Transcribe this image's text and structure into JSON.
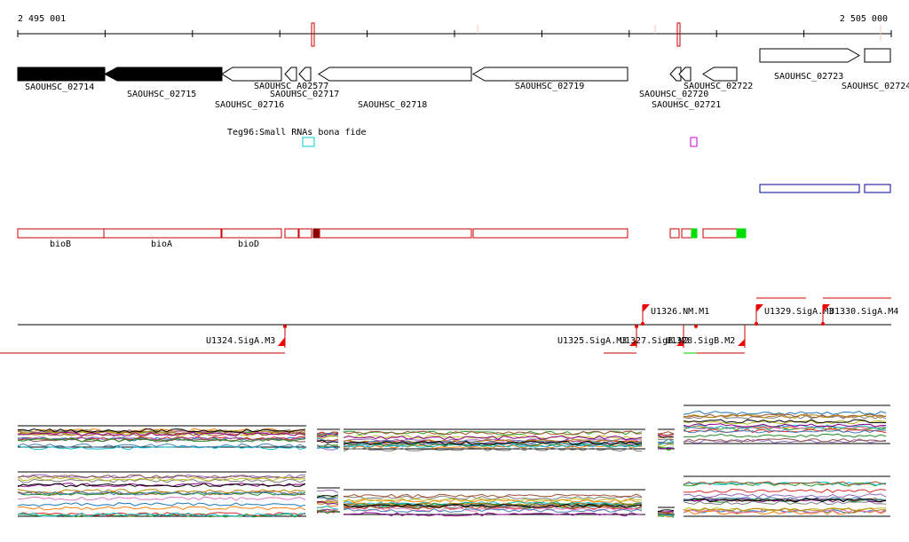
{
  "ruler": {
    "start_label": "2 495 001",
    "end_label": "2 505 000"
  },
  "genes": [
    {
      "name": "SAOUHSC_02714",
      "strand": "-",
      "fill": "black"
    },
    {
      "name": "SAOUHSC_02715",
      "strand": "-",
      "fill": "black"
    },
    {
      "name": "SAOUHSC_02716",
      "strand": "-",
      "fill": "white"
    },
    {
      "name": "SAOUHSC_A02577",
      "strand": "-",
      "fill": "white"
    },
    {
      "name": "SAOUHSC_02717",
      "strand": "-",
      "fill": "white"
    },
    {
      "name": "SAOUHSC_02718",
      "strand": "-",
      "fill": "white"
    },
    {
      "name": "SAOUHSC_02719",
      "strand": "-",
      "fill": "white"
    },
    {
      "name": "SAOUHSC_02720",
      "strand": "-",
      "fill": "white"
    },
    {
      "name": "SAOUHSC_02721",
      "strand": "-",
      "fill": "white"
    },
    {
      "name": "SAOUHSC_02722",
      "strand": "-",
      "fill": "white"
    },
    {
      "name": "SAOUHSC_02723",
      "strand": "+",
      "fill": "white"
    },
    {
      "name": "SAOUHSC_02724",
      "strand": "+",
      "fill": "white"
    }
  ],
  "srna": {
    "label": "Teg96:Small RNAs bona fide"
  },
  "operon_names": [
    "bioB",
    "bioA",
    "bioD"
  ],
  "promoters": [
    {
      "name": "U1324.SigA.M3"
    },
    {
      "name": "U1325.SigA.M3"
    },
    {
      "name": "U1326.NM.M1"
    },
    {
      "name": "U1327.SigB.M2"
    },
    {
      "name": "U1328.SigB.M2"
    },
    {
      "name": "U1329.SigA.M3"
    },
    {
      "name": "U1330.SigA.M4"
    }
  ],
  "colors": {
    "gene_black": "#000000",
    "track_red": "#cc0000",
    "dark_red": "#8b0000",
    "green": "#00dd00",
    "blue": "#000099",
    "cyan": "#00cccc",
    "magenta": "#cc00cc"
  }
}
